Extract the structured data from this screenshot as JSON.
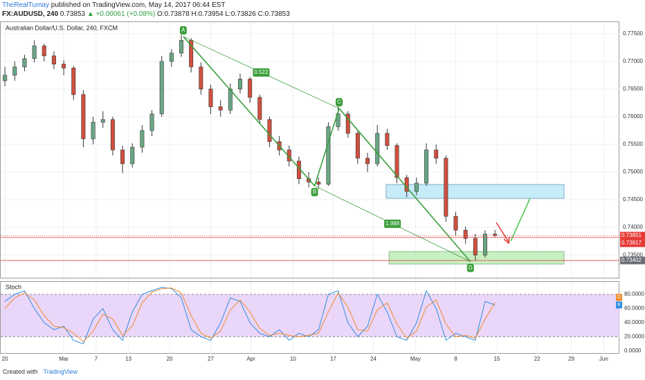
{
  "header": {
    "author": "TheRealTumay",
    "published": "published on TradingView.com, May 14, 2017 06:44 EST",
    "symbol": "FX:AUDUSD, 240",
    "last": "0.73853",
    "change": "▲ +0.00061 (+0.08%)",
    "o": "O:0.73878",
    "h": "H:0.73954",
    "l": "L:0.73826",
    "c": "C:0.73853"
  },
  "footer": {
    "created": "Created with",
    "brand": "TradingView"
  },
  "chart_data": {
    "type": "candlestick",
    "title": "Australian Dollar/U.S. Dollar, 240, FXCM",
    "up_color": "#6aa784",
    "down_color": "#d0503f",
    "open": [
      0.7665,
      0.7675,
      0.769,
      0.7705,
      0.7728,
      0.771,
      0.7695,
      0.7688,
      0.764,
      0.756,
      0.759,
      0.7595,
      0.754,
      0.7515,
      0.7545,
      0.7575,
      0.7605,
      0.77,
      0.7715,
      0.7738,
      0.769,
      0.765,
      0.7618,
      0.7612,
      0.765,
      0.7668,
      0.7635,
      0.7595,
      0.7555,
      0.754,
      0.752,
      0.7488,
      0.7482,
      0.7478,
      0.7582,
      0.7605,
      0.757,
      0.7525,
      0.7515,
      0.757,
      0.7548,
      0.749,
      0.7465,
      0.748,
      0.754,
      0.7525,
      0.742,
      0.7395,
      0.738,
      0.735,
      0.73878
    ],
    "high": [
      0.769,
      0.77,
      0.7712,
      0.7738,
      0.7732,
      0.7718,
      0.7702,
      0.7692,
      0.7648,
      0.76,
      0.761,
      0.76,
      0.7548,
      0.7552,
      0.7585,
      0.7612,
      0.771,
      0.7722,
      0.7748,
      0.7742,
      0.7698,
      0.7658,
      0.763,
      0.766,
      0.7678,
      0.7672,
      0.764,
      0.76,
      0.7565,
      0.7548,
      0.7528,
      0.75,
      0.749,
      0.759,
      0.762,
      0.761,
      0.7575,
      0.7535,
      0.7585,
      0.7578,
      0.7552,
      0.7495,
      0.749,
      0.7552,
      0.755,
      0.753,
      0.7428,
      0.7402,
      0.7388,
      0.7395,
      0.73954
    ],
    "low": [
      0.7655,
      0.7665,
      0.7682,
      0.7698,
      0.77,
      0.7686,
      0.7675,
      0.763,
      0.7545,
      0.755,
      0.758,
      0.753,
      0.7498,
      0.7508,
      0.7535,
      0.7565,
      0.76,
      0.769,
      0.7708,
      0.768,
      0.764,
      0.7605,
      0.76,
      0.7605,
      0.7642,
      0.7625,
      0.7588,
      0.7545,
      0.753,
      0.751,
      0.7478,
      0.7472,
      0.747,
      0.7475,
      0.7575,
      0.7562,
      0.7515,
      0.75,
      0.751,
      0.754,
      0.748,
      0.7455,
      0.7458,
      0.7475,
      0.7515,
      0.741,
      0.7385,
      0.737,
      0.734,
      0.7345,
      0.73826
    ],
    "close": [
      0.7675,
      0.769,
      0.7705,
      0.7728,
      0.771,
      0.7695,
      0.7688,
      0.764,
      0.756,
      0.759,
      0.7595,
      0.754,
      0.7515,
      0.7545,
      0.7575,
      0.7605,
      0.77,
      0.7715,
      0.7738,
      0.769,
      0.765,
      0.7618,
      0.7612,
      0.765,
      0.7668,
      0.7635,
      0.7595,
      0.7555,
      0.754,
      0.752,
      0.7488,
      0.7482,
      0.7478,
      0.7582,
      0.7605,
      0.757,
      0.7525,
      0.7515,
      0.757,
      0.7548,
      0.749,
      0.7465,
      0.748,
      0.754,
      0.7525,
      0.742,
      0.7395,
      0.738,
      0.735,
      0.73878,
      0.73853
    ],
    "xlim": [
      -0.15,
      62.7
    ],
    "xticks": [
      {
        "value": 0,
        "label": "20"
      },
      {
        "value": 6,
        "label": "Mar"
      },
      {
        "value": 9.3,
        "label": "7"
      },
      {
        "value": 12.6,
        "label": "13"
      },
      {
        "value": 16.8,
        "label": "20"
      },
      {
        "value": 21,
        "label": "27"
      },
      {
        "value": 25.1,
        "label": "Apr"
      },
      {
        "value": 29.4,
        "label": "10"
      },
      {
        "value": 33.5,
        "label": "17"
      },
      {
        "value": 37.6,
        "label": "24"
      },
      {
        "value": 41.9,
        "label": "May"
      },
      {
        "value": 46,
        "label": "8"
      },
      {
        "value": 50.2,
        "label": "15"
      },
      {
        "value": 54.3,
        "label": "22"
      },
      {
        "value": 57.8,
        "label": "29"
      },
      {
        "value": 61.1,
        "label": "Jun"
      }
    ],
    "ylim": [
      0.7309,
      0.7771
    ],
    "yticks": [
      {
        "value": 0.735,
        "label": "0.73500"
      },
      {
        "value": 0.74,
        "label": "0.74000"
      },
      {
        "value": 0.745,
        "label": "0.74500"
      },
      {
        "value": 0.75,
        "label": "0.75000"
      },
      {
        "value": 0.755,
        "label": "0.75500"
      },
      {
        "value": 0.76,
        "label": "0.76000"
      },
      {
        "value": 0.765,
        "label": "0.76500"
      },
      {
        "value": 0.77,
        "label": "0.77000"
      },
      {
        "value": 0.775,
        "label": "0.77500"
      }
    ],
    "grid": true,
    "price_lines": [
      {
        "value": 0.73851,
        "color": "#e53935",
        "dashed": true
      },
      {
        "value": 0.73817,
        "color": "#e53935",
        "dashed": false
      },
      {
        "value": 0.73402,
        "color": "#d32f2f",
        "dashed": false,
        "label_color": "#6b6e76"
      }
    ],
    "zones": [
      {
        "x": [
          38.9,
          57.05
        ],
        "y": [
          0.74525,
          0.74775
        ],
        "fill": "#c6ecf8",
        "stroke": "#7fa9c6"
      },
      {
        "x": [
          39.2,
          57.05
        ],
        "y": [
          0.73338,
          0.73563
        ],
        "fill": "#c9f0c2",
        "stroke": "#8dba8d"
      }
    ],
    "pattern": {
      "color": "#3a9e3a",
      "points": [
        {
          "label": "A",
          "x": 18.2,
          "y": 0.7745
        },
        {
          "label": "B",
          "x": 31.6,
          "y": 0.7475
        },
        {
          "label": "C",
          "x": 34.1,
          "y": 0.7615
        },
        {
          "label": "D",
          "x": 47.5,
          "y": 0.7338
        }
      ],
      "ratios": [
        "0.522",
        "1.988"
      ]
    },
    "indicator": {
      "title": "Stoch",
      "band": [
        20,
        80
      ],
      "band_color": "#e3c8f7"
    },
    "y2lim": [
      -4,
      97.6
    ],
    "y2ticks": [
      {
        "value": 0,
        "label": "0.0000"
      },
      {
        "value": 20,
        "label": "20.0000"
      },
      {
        "value": 40,
        "label": "40.0000"
      },
      {
        "value": 60,
        "label": "60.0000"
      },
      {
        "value": 80,
        "label": "80.0000"
      }
    ],
    "series": [
      {
        "name": "K",
        "color": "#2f8ee0",
        "axis": "y2",
        "values": [
          70,
          80,
          85,
          60,
          40,
          30,
          35,
          15,
          10,
          45,
          60,
          30,
          15,
          55,
          80,
          85,
          90,
          88,
          75,
          30,
          20,
          15,
          40,
          75,
          70,
          40,
          25,
          20,
          30,
          15,
          25,
          20,
          30,
          80,
          85,
          40,
          20,
          35,
          80,
          55,
          20,
          15,
          40,
          85,
          60,
          15,
          25,
          20,
          15,
          70,
          65
        ]
      },
      {
        "name": "D",
        "color": "#f08a2c",
        "axis": "y2",
        "values": [
          60,
          75,
          82,
          72,
          50,
          35,
          33,
          25,
          13,
          28,
          52,
          45,
          22,
          35,
          68,
          83,
          88,
          89,
          82,
          50,
          25,
          18,
          28,
          58,
          72,
          55,
          32,
          22,
          25,
          22,
          20,
          22,
          25,
          55,
          82,
          62,
          30,
          28,
          58,
          68,
          38,
          18,
          28,
          62,
          72,
          38,
          20,
          22,
          18,
          45,
          68
        ]
      }
    ]
  }
}
